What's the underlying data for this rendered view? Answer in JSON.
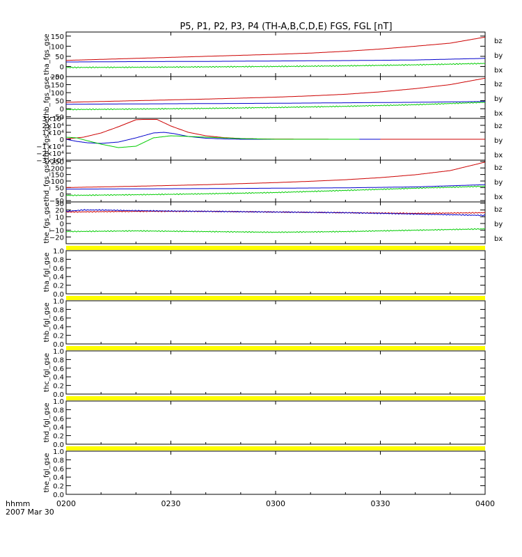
{
  "title": "P5, P1, P2, P3, P4 (TH-A,B,C,D,E) FGS, FGL [nT]",
  "footer": {
    "line1": "hhmm",
    "line2": "2007 Mar 30"
  },
  "colors": {
    "bx": "#0000cc",
    "by": "#00cc00",
    "bz": "#cc0000",
    "nodata": "#ffff00",
    "axis": "#000000"
  },
  "chart_data": [
    {
      "type": "line",
      "ylabel": "tha_fgs_gse",
      "ylim": [
        -50,
        170
      ],
      "yticks": [
        {
          "v": 150,
          "label": "150"
        },
        {
          "v": 100,
          "label": "100"
        },
        {
          "v": 50,
          "label": "50"
        },
        {
          "v": 0,
          "label": "0"
        },
        {
          "v": -50,
          "label": "−50"
        }
      ],
      "legend": [
        "bz",
        "by",
        "bx"
      ],
      "series": [
        {
          "name": "bz",
          "color": "#cc0000",
          "kind": "smooth",
          "x": [
            0,
            10,
            20,
            30,
            40,
            50,
            60,
            70,
            80,
            90,
            100,
            110,
            120
          ],
          "y": [
            30,
            35,
            40,
            45,
            50,
            55,
            60,
            66,
            75,
            86,
            100,
            115,
            145
          ]
        },
        {
          "name": "by",
          "color": "#0000cc",
          "kind": "smooth",
          "x": [
            0,
            20,
            40,
            60,
            80,
            100,
            120
          ],
          "y": [
            22,
            24,
            25,
            27,
            29,
            32,
            40
          ]
        },
        {
          "name": "bx",
          "color": "#00cc00",
          "kind": "noisy",
          "x": [
            0,
            20,
            40,
            60,
            80,
            100,
            120
          ],
          "y": [
            -5,
            -4,
            -2,
            0,
            3,
            8,
            15
          ]
        }
      ]
    },
    {
      "type": "line",
      "ylabel": "thb_fgs_gse",
      "ylim": [
        -60,
        200
      ],
      "yticks": [
        {
          "v": 200,
          "label": "200"
        },
        {
          "v": 150,
          "label": "150"
        },
        {
          "v": 100,
          "label": "100"
        },
        {
          "v": 50,
          "label": "50"
        },
        {
          "v": 0,
          "label": "0"
        },
        {
          "v": -50,
          "label": "−50"
        }
      ],
      "legend": [
        "bz",
        "by",
        "bx"
      ],
      "series": [
        {
          "name": "bz",
          "color": "#cc0000",
          "kind": "smooth",
          "x": [
            0,
            10,
            20,
            30,
            40,
            50,
            60,
            70,
            80,
            90,
            100,
            110,
            120
          ],
          "y": [
            40,
            45,
            50,
            55,
            60,
            66,
            72,
            80,
            90,
            105,
            125,
            150,
            190
          ]
        },
        {
          "name": "by",
          "color": "#0000cc",
          "kind": "smooth",
          "x": [
            0,
            20,
            40,
            60,
            80,
            100,
            120
          ],
          "y": [
            28,
            30,
            32,
            34,
            37,
            40,
            45
          ]
        },
        {
          "name": "bx",
          "color": "#00cc00",
          "kind": "noisy",
          "x": [
            0,
            20,
            40,
            60,
            80,
            100,
            120
          ],
          "y": [
            -5,
            -2,
            2,
            8,
            15,
            25,
            40
          ]
        }
      ]
    },
    {
      "type": "line",
      "ylabel": "thc_fgs_gse",
      "ylim": [
        -3,
        3
      ],
      "yticks": [
        {
          "v": 3,
          "label": "3×10⁴"
        },
        {
          "v": 2,
          "label": "2×10⁴"
        },
        {
          "v": 1,
          "label": "1×10⁴"
        },
        {
          "v": 0,
          "label": "0"
        },
        {
          "v": -1,
          "label": "−1×10⁴"
        },
        {
          "v": -2,
          "label": "−2×10⁴"
        },
        {
          "v": -3,
          "label": "−3×10⁴"
        }
      ],
      "legend": [
        "bz",
        "by",
        "bx"
      ],
      "series": [
        {
          "name": "bz",
          "color": "#cc0000",
          "kind": "smooth",
          "x": [
            0,
            5,
            10,
            15,
            20,
            22,
            26,
            30,
            35,
            40,
            45,
            50,
            55,
            60,
            80,
            100,
            120
          ],
          "y": [
            0.05,
            0.3,
            0.9,
            1.8,
            2.8,
            2.85,
            2.85,
            1.9,
            1.0,
            0.5,
            0.25,
            0.1,
            0.05,
            0.02,
            0,
            0,
            0
          ]
        },
        {
          "name": "bx",
          "color": "#0000cc",
          "kind": "smooth",
          "x": [
            0,
            3,
            6,
            10,
            15,
            20,
            25,
            28,
            31,
            35,
            40,
            45,
            50,
            60,
            80,
            90
          ],
          "y": [
            0,
            -0.3,
            -0.5,
            -0.6,
            -0.4,
            0.2,
            0.9,
            1.0,
            0.8,
            0.4,
            0.15,
            0.05,
            0,
            0,
            0,
            0
          ]
        },
        {
          "name": "by",
          "color": "#00cc00",
          "kind": "smooth",
          "x": [
            0,
            3,
            6,
            10,
            15,
            20,
            25,
            30,
            35,
            40,
            45,
            50,
            55,
            60,
            70,
            80,
            84
          ],
          "y": [
            0.3,
            0.2,
            -0.2,
            -0.7,
            -1.2,
            -1.0,
            0.2,
            0.5,
            0.4,
            0.3,
            0.2,
            0.1,
            0.05,
            0,
            0,
            0,
            0
          ]
        }
      ]
    },
    {
      "type": "line",
      "ylabel": "thd_fgs_gse",
      "ylim": [
        -60,
        260
      ],
      "yticks": [
        {
          "v": 250,
          "label": "250"
        },
        {
          "v": 200,
          "label": "200"
        },
        {
          "v": 150,
          "label": "150"
        },
        {
          "v": 100,
          "label": "100"
        },
        {
          "v": 50,
          "label": "50"
        },
        {
          "v": 0,
          "label": "0"
        },
        {
          "v": -50,
          "label": "−50"
        }
      ],
      "legend": [
        "bz",
        "by",
        "bx"
      ],
      "series": [
        {
          "name": "bz",
          "color": "#cc0000",
          "kind": "smooth",
          "x": [
            0,
            10,
            20,
            30,
            40,
            50,
            60,
            70,
            80,
            90,
            100,
            110,
            120
          ],
          "y": [
            50,
            55,
            60,
            66,
            72,
            80,
            88,
            98,
            110,
            126,
            148,
            180,
            245
          ]
        },
        {
          "name": "by",
          "color": "#0000cc",
          "kind": "smooth",
          "x": [
            0,
            20,
            40,
            60,
            80,
            100,
            120
          ],
          "y": [
            38,
            40,
            42,
            45,
            48,
            55,
            72
          ]
        },
        {
          "name": "bx",
          "color": "#00cc00",
          "kind": "noisy",
          "x": [
            0,
            20,
            40,
            60,
            80,
            100,
            120
          ],
          "y": [
            -10,
            -5,
            2,
            12,
            28,
            45,
            60
          ]
        }
      ]
    },
    {
      "type": "line",
      "ylabel": "the_fgs_gse",
      "ylim": [
        -30,
        32
      ],
      "yticks": [
        {
          "v": 30,
          "label": "30"
        },
        {
          "v": 20,
          "label": "20"
        },
        {
          "v": 10,
          "label": "10"
        },
        {
          "v": 0,
          "label": "0"
        },
        {
          "v": -10,
          "label": "−10"
        },
        {
          "v": -20,
          "label": "−20"
        }
      ],
      "legend": [
        "bz",
        "by",
        "bx"
      ],
      "series": [
        {
          "name": "bz",
          "color": "#cc0000",
          "kind": "noisy",
          "x": [
            0,
            20,
            40,
            60,
            80,
            100,
            120
          ],
          "y": [
            17,
            18,
            18,
            17,
            16,
            15,
            16
          ]
        },
        {
          "name": "bx",
          "color": "#0000cc",
          "kind": "noisy",
          "x": [
            0,
            5,
            10,
            20,
            40,
            60,
            80,
            100,
            120
          ],
          "y": [
            18,
            20,
            20,
            19,
            18,
            17,
            16,
            14,
            12
          ]
        },
        {
          "name": "by",
          "color": "#00cc00",
          "kind": "noisy",
          "x": [
            0,
            20,
            40,
            60,
            80,
            100,
            120
          ],
          "y": [
            -12,
            -11,
            -12,
            -13,
            -12,
            -10,
            -8
          ]
        }
      ]
    },
    {
      "type": "line",
      "ylabel": "tha_fgl_gse",
      "ylim": [
        0,
        1
      ],
      "yticks": [
        {
          "v": 1,
          "label": "1.0"
        },
        {
          "v": 0.8,
          "label": "0.8"
        },
        {
          "v": 0.6,
          "label": "0.6"
        },
        {
          "v": 0.4,
          "label": "0.4"
        },
        {
          "v": 0.2,
          "label": "0.2"
        },
        {
          "v": 0,
          "label": "0.0"
        }
      ],
      "legend": [],
      "series": []
    },
    {
      "type": "line",
      "ylabel": "thb_fgl_gse",
      "ylim": [
        0,
        1
      ],
      "yticks": [
        {
          "v": 1,
          "label": "1.0"
        },
        {
          "v": 0.8,
          "label": "0.8"
        },
        {
          "v": 0.6,
          "label": "0.6"
        },
        {
          "v": 0.4,
          "label": "0.4"
        },
        {
          "v": 0.2,
          "label": "0.2"
        },
        {
          "v": 0,
          "label": "0.0"
        }
      ],
      "legend": [],
      "series": []
    },
    {
      "type": "line",
      "ylabel": "thc_fgl_gse",
      "ylim": [
        0,
        1
      ],
      "yticks": [
        {
          "v": 1,
          "label": "1.0"
        },
        {
          "v": 0.8,
          "label": "0.8"
        },
        {
          "v": 0.6,
          "label": "0.6"
        },
        {
          "v": 0.4,
          "label": "0.4"
        },
        {
          "v": 0.2,
          "label": "0.2"
        },
        {
          "v": 0,
          "label": "0.0"
        }
      ],
      "legend": [],
      "series": []
    },
    {
      "type": "line",
      "ylabel": "thd_fgl_gse",
      "ylim": [
        0,
        1
      ],
      "yticks": [
        {
          "v": 1,
          "label": "1.0"
        },
        {
          "v": 0.8,
          "label": "0.8"
        },
        {
          "v": 0.6,
          "label": "0.6"
        },
        {
          "v": 0.4,
          "label": "0.4"
        },
        {
          "v": 0.2,
          "label": "0.2"
        },
        {
          "v": 0,
          "label": "0.0"
        }
      ],
      "legend": [],
      "series": []
    },
    {
      "type": "line",
      "ylabel": "the_fgl_gse",
      "ylim": [
        0,
        1
      ],
      "yticks": [
        {
          "v": 1,
          "label": "1.0"
        },
        {
          "v": 0.8,
          "label": "0.8"
        },
        {
          "v": 0.6,
          "label": "0.6"
        },
        {
          "v": 0.4,
          "label": "0.4"
        },
        {
          "v": 0.2,
          "label": "0.2"
        },
        {
          "v": 0,
          "label": "0.0"
        }
      ],
      "legend": [],
      "series": []
    }
  ],
  "xaxis": {
    "range": [
      0,
      120
    ],
    "ticks": [
      {
        "v": 0,
        "label": "0200"
      },
      {
        "v": 30,
        "label": "0230"
      },
      {
        "v": 60,
        "label": "0300"
      },
      {
        "v": 90,
        "label": "0330"
      },
      {
        "v": 120,
        "label": "0400"
      }
    ]
  }
}
